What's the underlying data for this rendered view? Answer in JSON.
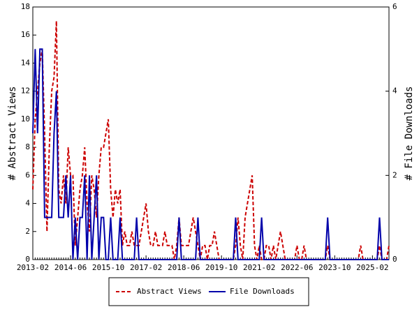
{
  "chart_data": {
    "type": "line",
    "y_label": "# Abstract Views",
    "y2_label": "# File Downloads",
    "categories": [
      "2013-02",
      null,
      null,
      null,
      null,
      null,
      null,
      null,
      null,
      null,
      null,
      null,
      null,
      null,
      null,
      null,
      "2014-06",
      null,
      null,
      null,
      null,
      null,
      null,
      null,
      null,
      null,
      null,
      null,
      null,
      null,
      null,
      null,
      "2015-10",
      null,
      null,
      null,
      null,
      null,
      null,
      null,
      null,
      null,
      null,
      null,
      null,
      null,
      null,
      null,
      "2017-02",
      null,
      null,
      null,
      null,
      null,
      null,
      null,
      null,
      null,
      null,
      null,
      null,
      null,
      null,
      null,
      "2018-06",
      null,
      null,
      null,
      null,
      null,
      null,
      null,
      null,
      null,
      null,
      null,
      null,
      null,
      null,
      null,
      "2019-10",
      null,
      null,
      null,
      null,
      null,
      null,
      null,
      null,
      null,
      null,
      null,
      null,
      null,
      null,
      null,
      "2021-02",
      null,
      null,
      null,
      null,
      null,
      null,
      null,
      null,
      null,
      null,
      null,
      null,
      null,
      null,
      null,
      "2022-06",
      null,
      null,
      null,
      null,
      null,
      null,
      null,
      null,
      null,
      null,
      null,
      null,
      null,
      null,
      null,
      "2023-10",
      null,
      null,
      null,
      null,
      null,
      null,
      null,
      null,
      null,
      null,
      null,
      null,
      null,
      null,
      null,
      "2025-02",
      null,
      null,
      null,
      null,
      null,
      null,
      null
    ],
    "series": [
      {
        "name": "Abstract Views",
        "color": "#cc0000",
        "style": "dashed",
        "axis": "y",
        "values": [
          5,
          10,
          12,
          14,
          15,
          9,
          2,
          8,
          12,
          13,
          17,
          5,
          4,
          6,
          4,
          8,
          6,
          6,
          1,
          3,
          5,
          6,
          8,
          4,
          2,
          6,
          5,
          3,
          6,
          8,
          8,
          9,
          10,
          5,
          3,
          5,
          4,
          5,
          1,
          2,
          1,
          1,
          2,
          1,
          1,
          1,
          2,
          3,
          4,
          2,
          1,
          1,
          2,
          1,
          1,
          1,
          2,
          1,
          1,
          1,
          0,
          1,
          3,
          1,
          1,
          1,
          1,
          2,
          3,
          2,
          1,
          0,
          1,
          1,
          0,
          1,
          1,
          2,
          1,
          0,
          0,
          0,
          0,
          0,
          0,
          0,
          1,
          3,
          1,
          0,
          3,
          4,
          5,
          6,
          1,
          0,
          1,
          0,
          0,
          1,
          1,
          0,
          1,
          0,
          1,
          2,
          1,
          0,
          0,
          0,
          0,
          0,
          1,
          0,
          0,
          1,
          0,
          0,
          0,
          0,
          0,
          0,
          0,
          0,
          0,
          1,
          0,
          0,
          0,
          0,
          0,
          0,
          0,
          0,
          0,
          0,
          0,
          0,
          0,
          1,
          0,
          0,
          0,
          0,
          0,
          0,
          0,
          1,
          0,
          0,
          0,
          1
        ]
      },
      {
        "name": "File Downloads",
        "color": "#0000aa",
        "style": "solid",
        "axis": "y2",
        "values": [
          3,
          5,
          3,
          5,
          5,
          1,
          1,
          1,
          1,
          3,
          4,
          1,
          1,
          1,
          2,
          1,
          2,
          0,
          1,
          0,
          1,
          1,
          2,
          0,
          2,
          0,
          1,
          2,
          0,
          1,
          1,
          0,
          0,
          1,
          0,
          0,
          0,
          1,
          0,
          0,
          0,
          0,
          0,
          0,
          1,
          0,
          0,
          0,
          0,
          0,
          0,
          0,
          0,
          0,
          0,
          0,
          0,
          0,
          0,
          0,
          0,
          0,
          1,
          0,
          0,
          0,
          0,
          0,
          0,
          0,
          1,
          0,
          0,
          0,
          0,
          0,
          0,
          0,
          0,
          0,
          0,
          0,
          0,
          0,
          0,
          0,
          1,
          0,
          0,
          0,
          0,
          0,
          0,
          0,
          0,
          0,
          0,
          1,
          0,
          0,
          0,
          0,
          0,
          0,
          0,
          0,
          0,
          0,
          0,
          0,
          0,
          0,
          0,
          0,
          0,
          0,
          0,
          0,
          0,
          0,
          0,
          0,
          0,
          0,
          0,
          1,
          0,
          0,
          0,
          0,
          0,
          0,
          0,
          0,
          0,
          0,
          0,
          0,
          0,
          0,
          0,
          0,
          0,
          0,
          0,
          0,
          0,
          1,
          0,
          0,
          0,
          0
        ]
      }
    ],
    "ylim": [
      0,
      18
    ],
    "yticks": [
      0,
      2,
      4,
      6,
      8,
      10,
      12,
      14,
      16,
      18
    ],
    "y2lim": [
      0,
      6
    ],
    "y2ticks": [
      0,
      2,
      4,
      6
    ],
    "legend": "bottom"
  }
}
